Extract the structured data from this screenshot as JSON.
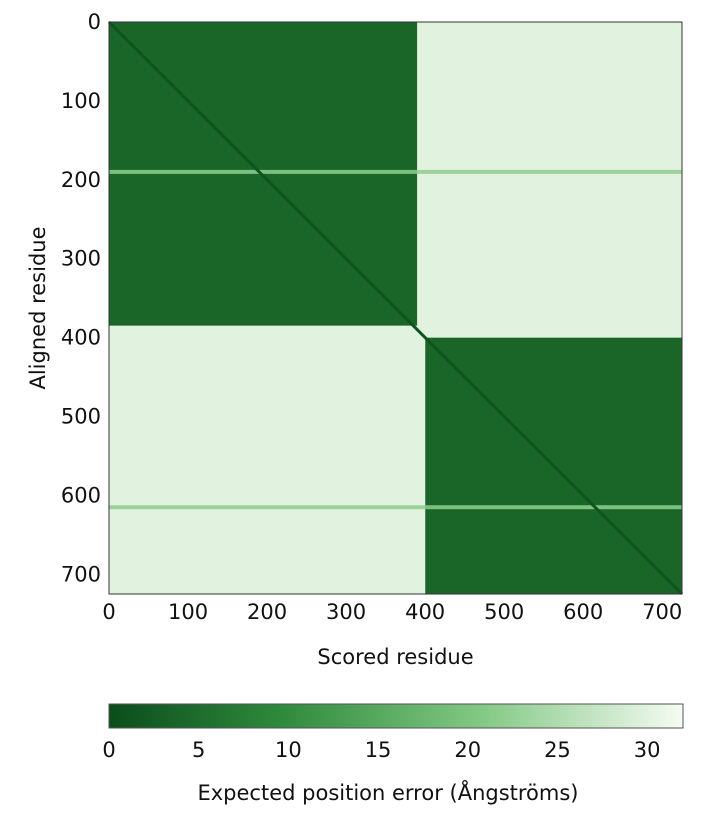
{
  "chart_data": {
    "type": "heatmap",
    "title": "",
    "xlabel": "Scored residue",
    "ylabel": "Aligned residue",
    "x_ticks": [
      "0",
      "100",
      "200",
      "300",
      "400",
      "500",
      "600",
      "700"
    ],
    "y_ticks": [
      "0",
      "100",
      "200",
      "300",
      "400",
      "500",
      "600",
      "700"
    ],
    "xlim": [
      0,
      725
    ],
    "ylim": [
      0,
      725
    ],
    "y_axis_inverted": true,
    "blocks": [
      {
        "name": "domain-1-intra",
        "x_range": [
          0,
          390
        ],
        "y_range": [
          0,
          385
        ],
        "value": 4
      },
      {
        "name": "domain-2-intra",
        "x_range": [
          400,
          725
        ],
        "y_range": [
          400,
          725
        ],
        "value": 4
      },
      {
        "name": "inter-domain-upper",
        "x_range": [
          390,
          725
        ],
        "y_range": [
          0,
          400
        ],
        "value": 30
      },
      {
        "name": "inter-domain-lower",
        "x_range": [
          0,
          400
        ],
        "y_range": [
          385,
          725
        ],
        "value": 30
      }
    ],
    "diagonal": {
      "value": 1
    },
    "stripes": [
      {
        "axis": "y",
        "at": 190,
        "value": 22
      },
      {
        "axis": "y",
        "at": 615,
        "value": 22
      }
    ],
    "colorbar": {
      "label": "Expected position error (Ångströms)",
      "min": 0,
      "max": 32,
      "ticks": [
        "0",
        "5",
        "10",
        "15",
        "20",
        "25",
        "30"
      ],
      "colors": [
        "#0b4d1c",
        "#2f8a3c",
        "#83c985",
        "#f6fbf3"
      ]
    }
  }
}
